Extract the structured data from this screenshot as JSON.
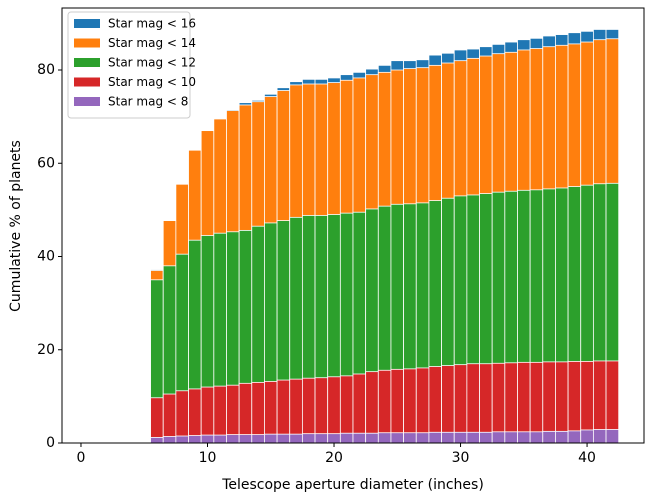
{
  "chart_data": {
    "type": "histogram",
    "x_label": "Telescope aperture diameter (inches)",
    "y_label": "Cumulative % of planets",
    "bins": [
      5.5,
      6.5,
      7.5,
      8.5,
      9.5,
      10.5,
      11.5,
      12.5,
      13.5,
      14.5,
      15.5,
      16.5,
      17.5,
      18.5,
      19.5,
      20.5,
      21.5,
      22.5,
      23.5,
      24.5,
      25.5,
      26.5,
      27.5,
      28.5,
      29.5,
      30.5,
      31.5,
      32.5,
      33.5,
      34.5,
      35.5,
      36.5,
      37.5,
      38.5,
      39.5,
      40.5,
      41.5,
      42.5
    ],
    "series": [
      {
        "name": "Star mag < 16",
        "color": "#1f77b4",
        "values": [
          37.2,
          47.7,
          55.5,
          62.8,
          67,
          69.5,
          71.5,
          73,
          73.5,
          74.8,
          76.2,
          77.5,
          78,
          78,
          78.3,
          79,
          79.5,
          80.2,
          81,
          82,
          82,
          82.2,
          83.2,
          83.6,
          84.3,
          84.5,
          85,
          85.5,
          86,
          86.5,
          86.8,
          87.3,
          87.6,
          88,
          88.3,
          88.7,
          88.7
        ]
      },
      {
        "name": "Star mag < 14",
        "color": "#ff7f0e",
        "values": [
          37,
          47.7,
          55.5,
          62.8,
          67,
          69.5,
          71.3,
          72.5,
          73.2,
          74.3,
          75.6,
          76.8,
          77,
          77,
          77.3,
          77.8,
          78.3,
          79,
          79.5,
          80,
          80.3,
          80.5,
          81,
          81.5,
          82,
          82.5,
          83,
          83.5,
          83.8,
          84.3,
          84.6,
          85,
          85.3,
          85.6,
          86,
          86.5,
          86.7
        ]
      },
      {
        "name": "Star mag < 12",
        "color": "#2ca02c",
        "values": [
          35,
          38,
          40.5,
          43.5,
          44.5,
          45,
          45.3,
          45.6,
          46.5,
          47.2,
          47.7,
          48.4,
          48.8,
          48.8,
          49,
          49.3,
          49.5,
          50.2,
          50.8,
          51.2,
          51.3,
          51.5,
          52,
          52.5,
          53,
          53.2,
          53.5,
          53.8,
          54,
          54.2,
          54.3,
          54.5,
          54.7,
          55,
          55.3,
          55.6,
          55.7
        ]
      },
      {
        "name": "Star mag < 10",
        "color": "#d62728",
        "values": [
          9.7,
          10.5,
          11.2,
          11.6,
          12,
          12.2,
          12.4,
          12.8,
          13,
          13.2,
          13.5,
          13.7,
          13.9,
          14,
          14.2,
          14.4,
          14.8,
          15.3,
          15.6,
          15.8,
          15.9,
          16.1,
          16.4,
          16.6,
          16.8,
          17,
          17,
          17.1,
          17.2,
          17.3,
          17.3,
          17.4,
          17.4,
          17.5,
          17.5,
          17.6,
          17.6
        ]
      },
      {
        "name": "Star mag < 8",
        "color": "#9467bd",
        "values": [
          1.2,
          1.4,
          1.5,
          1.6,
          1.7,
          1.7,
          1.8,
          1.8,
          1.8,
          1.9,
          1.9,
          1.9,
          2,
          2,
          2,
          2.1,
          2.1,
          2.1,
          2.2,
          2.2,
          2.2,
          2.2,
          2.3,
          2.3,
          2.3,
          2.3,
          2.3,
          2.4,
          2.4,
          2.4,
          2.4,
          2.5,
          2.5,
          2.6,
          2.8,
          2.9,
          2.9
        ]
      }
    ],
    "xlim": [
      -1.5,
      44.5
    ],
    "ylim": [
      0,
      93.3
    ],
    "xticks": [
      0,
      10,
      20,
      30,
      40
    ],
    "yticks": [
      0,
      20,
      40,
      60,
      80
    ],
    "legend": "upper left"
  }
}
